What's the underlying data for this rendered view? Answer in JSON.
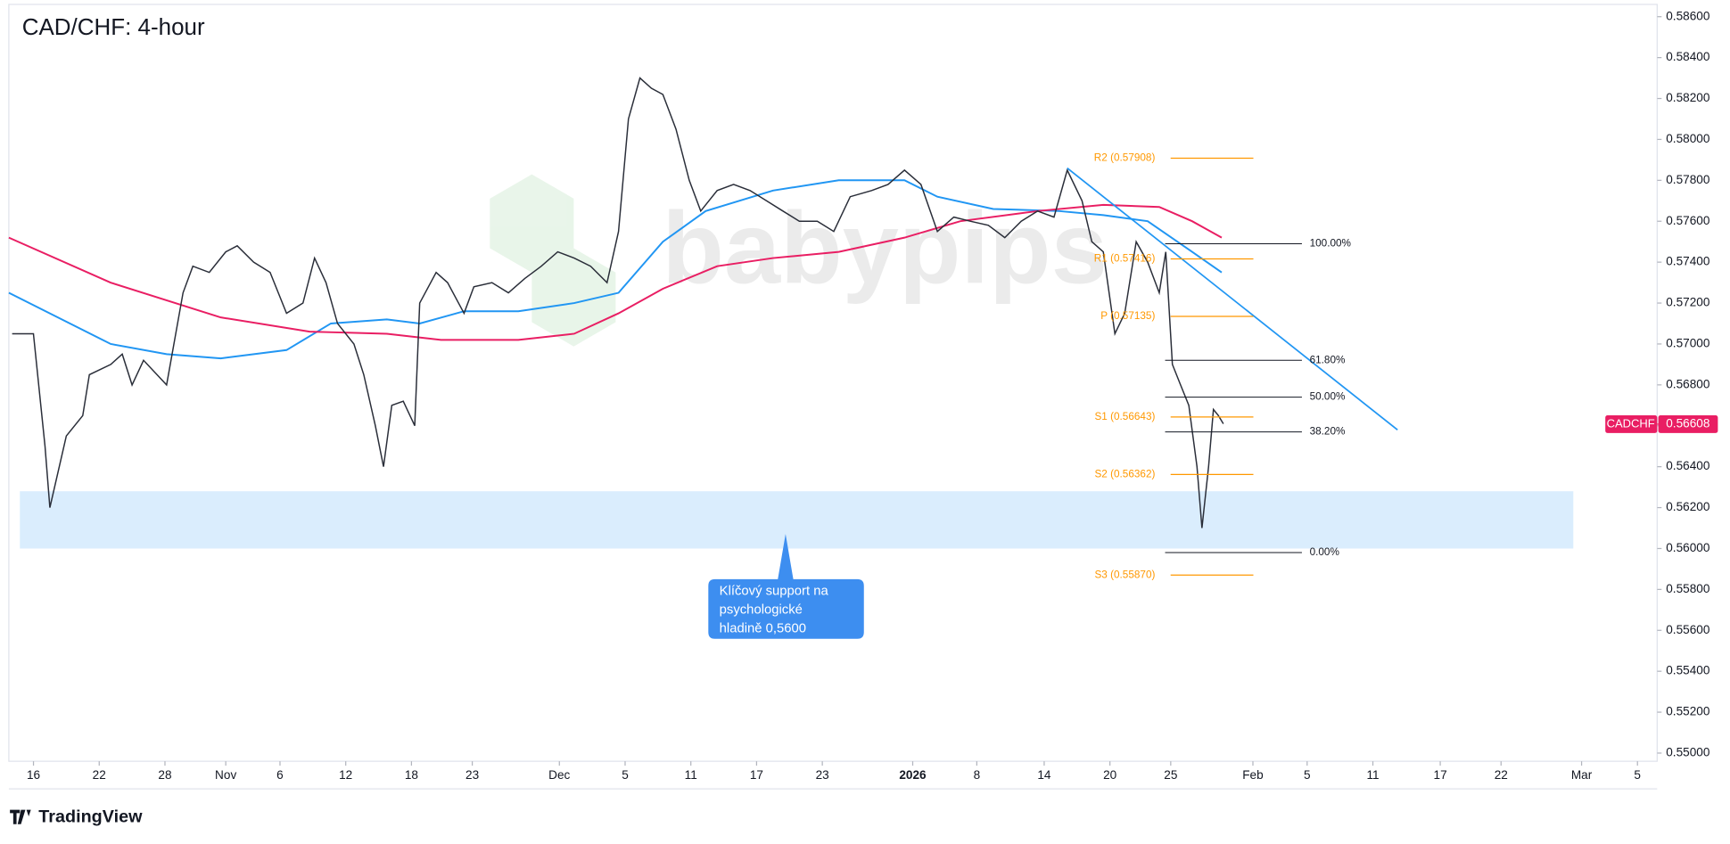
{
  "chart_data": {
    "type": "line",
    "title": "CAD/CHF: 4-hour",
    "watermark": "babypips",
    "brand": "TradingView",
    "symbol": "CADCHF",
    "last_price": 0.56608,
    "x": [
      -1.3,
      0,
      0.7,
      1.0,
      2.0,
      3.0,
      3.4,
      4.7,
      5.4,
      6.0,
      6.7,
      8.1,
      9.1,
      9.7,
      10.7,
      11.7,
      12.4,
      13.4,
      14.4,
      15.4,
      16.4,
      17.1,
      17.8,
      18.5,
      19.5,
      20.1,
      20.8,
      21.3,
      21.8,
      22.5,
      23.2,
      23.5,
      24.5,
      25.2,
      26.2,
      26.8,
      27.9,
      28.9,
      29.9,
      30.9,
      31.9,
      32.9,
      33.9,
      34.9,
      35.6,
      36.2,
      36.9,
      37.6,
      38.3,
      39.1,
      39.9,
      40.6,
      41.6,
      42.6,
      43.6,
      44.6,
      45.6,
      46.6,
      47.7,
      48.7,
      49.7,
      51.0,
      52.0,
      53.0,
      54.0,
      55.0,
      56.0,
      57.0,
      58.1,
      59.1,
      60.1,
      61.1,
      62.1,
      62.9,
      63.8,
      64.4,
      65.1,
      65.8,
      66.4,
      67.1,
      67.8,
      68.5,
      68.9,
      69.3,
      69.8,
      70.3,
      70.8,
      71.1,
      71.5,
      71.8,
      72.1,
      72.4
    ],
    "series": [
      {
        "name": "CADCHF",
        "color": "#2a2e39",
        "values": [
          0.5705,
          0.5705,
          0.565,
          0.562,
          0.5655,
          0.5665,
          0.5685,
          0.569,
          0.5695,
          0.568,
          0.5692,
          0.568,
          0.5725,
          0.5738,
          0.5735,
          0.5745,
          0.5748,
          0.574,
          0.5735,
          0.5715,
          0.572,
          0.5742,
          0.573,
          0.571,
          0.57,
          0.5685,
          0.566,
          0.564,
          0.567,
          0.5672,
          0.566,
          0.572,
          0.5735,
          0.573,
          0.5715,
          0.5728,
          0.573,
          0.5725,
          0.5732,
          0.5738,
          0.5745,
          0.5742,
          0.5738,
          0.573,
          0.5755,
          0.581,
          0.583,
          0.5825,
          0.5822,
          0.5805,
          0.578,
          0.5765,
          0.5775,
          0.5778,
          0.5775,
          0.577,
          0.5765,
          0.576,
          0.576,
          0.5755,
          0.5772,
          0.5775,
          0.5778,
          0.5785,
          0.5778,
          0.5755,
          0.5762,
          0.576,
          0.5758,
          0.5752,
          0.576,
          0.5765,
          0.5762,
          0.5785,
          0.577,
          0.575,
          0.5745,
          0.5705,
          0.5715,
          0.575,
          0.574,
          0.5725,
          0.5745,
          0.569,
          0.568,
          0.567,
          0.564,
          0.561,
          0.564,
          0.5668,
          0.5665,
          0.5661
        ]
      }
    ],
    "moving_averages": [
      {
        "color": "#2196f3",
        "x": [
          -1.5,
          4.7,
          8.1,
          11.4,
          15.4,
          18.1,
          21.5,
          23.5,
          26.2,
          29.5,
          32.9,
          35.6,
          38.3,
          40.9,
          45.0,
          49.0,
          53.0,
          55.0,
          58.4,
          62.4,
          65.1,
          67.8,
          70.5,
          72.3
        ],
        "values": [
          0.5725,
          0.57,
          0.5695,
          0.5693,
          0.5697,
          0.571,
          0.5712,
          0.571,
          0.5716,
          0.5716,
          0.572,
          0.5725,
          0.575,
          0.5765,
          0.5775,
          0.578,
          0.578,
          0.5772,
          0.5766,
          0.5765,
          0.5763,
          0.576,
          0.5745,
          0.5735
        ]
      },
      {
        "color": "#e91e63",
        "x": [
          -1.5,
          4.7,
          11.4,
          16.8,
          21.5,
          24.8,
          29.5,
          32.9,
          35.6,
          38.3,
          41.6,
          45.0,
          49.0,
          53.0,
          56.4,
          61.1,
          65.1,
          68.5,
          70.5,
          72.3
        ],
        "values": [
          0.5752,
          0.573,
          0.5713,
          0.5706,
          0.5705,
          0.5702,
          0.5702,
          0.5705,
          0.5715,
          0.5727,
          0.5738,
          0.5742,
          0.5745,
          0.5752,
          0.576,
          0.5765,
          0.5768,
          0.5767,
          0.576,
          0.5752
        ]
      }
    ],
    "support_zone": [
      0.56,
      0.5628
    ],
    "trendline": {
      "x": [
        62.9,
        83.0
      ],
      "values": [
        0.5786,
        0.5658
      ]
    },
    "fib_levels": [
      {
        "price": 0.5749,
        "label": "100.00%"
      },
      {
        "price": 0.5692,
        "label": "61.80%"
      },
      {
        "price": 0.5674,
        "label": "50.00%"
      },
      {
        "price": 0.5657,
        "label": "38.20%"
      },
      {
        "price": 0.5598,
        "label": "0.00%"
      }
    ],
    "pivots": [
      {
        "price": 0.57908,
        "label": "R2 (0.57908)"
      },
      {
        "price": 0.57416,
        "label": "R1 (0.57416)"
      },
      {
        "price": 0.57135,
        "label": "P (0.57135)"
      },
      {
        "price": 0.56643,
        "label": "S1 (0.56643)"
      },
      {
        "price": 0.56362,
        "label": "S2 (0.56362)"
      },
      {
        "price": 0.5587,
        "label": "S3 (0.55870)"
      }
    ],
    "annotation": [
      "Klíčový support na",
      "psychologické",
      "hladině 0,5600"
    ],
    "xlim": [
      -1.5,
      98.8
    ],
    "ylim": [
      0.5496,
      0.5866
    ],
    "xticks": [
      {
        "value": 0,
        "label": "16"
      },
      {
        "value": 4,
        "label": "22"
      },
      {
        "value": 8,
        "label": "28"
      },
      {
        "value": 11.7,
        "label": "Nov"
      },
      {
        "value": 15,
        "label": "6"
      },
      {
        "value": 19,
        "label": "12"
      },
      {
        "value": 23,
        "label": "18"
      },
      {
        "value": 26.7,
        "label": "23"
      },
      {
        "value": 32,
        "label": "Dec"
      },
      {
        "value": 36,
        "label": "5"
      },
      {
        "value": 40,
        "label": "11"
      },
      {
        "value": 44,
        "label": "17"
      },
      {
        "value": 48,
        "label": "23"
      },
      {
        "value": 53.5,
        "label": "2026"
      },
      {
        "value": 57.4,
        "label": "8"
      },
      {
        "value": 61.5,
        "label": "14"
      },
      {
        "value": 65.5,
        "label": "20"
      },
      {
        "value": 69.2,
        "label": "25"
      },
      {
        "value": 74.2,
        "label": "Feb"
      },
      {
        "value": 77.5,
        "label": "5"
      },
      {
        "value": 81.5,
        "label": "11"
      },
      {
        "value": 85.6,
        "label": "17"
      },
      {
        "value": 89.3,
        "label": "22"
      },
      {
        "value": 94.2,
        "label": "Mar"
      },
      {
        "value": 97.6,
        "label": "5"
      }
    ],
    "yticks": [
      {
        "value": 0.586,
        "label": "0.58600"
      },
      {
        "value": 0.584,
        "label": "0.58400"
      },
      {
        "value": 0.582,
        "label": "0.58200"
      },
      {
        "value": 0.58,
        "label": "0.58000"
      },
      {
        "value": 0.578,
        "label": "0.57800"
      },
      {
        "value": 0.576,
        "label": "0.57600"
      },
      {
        "value": 0.574,
        "label": "0.57400"
      },
      {
        "value": 0.572,
        "label": "0.57200"
      },
      {
        "value": 0.57,
        "label": "0.57000"
      },
      {
        "value": 0.568,
        "label": "0.56800"
      },
      {
        "value": 0.566,
        "label": "0.56600"
      },
      {
        "value": 0.564,
        "label": "0.56400"
      },
      {
        "value": 0.562,
        "label": "0.56200"
      },
      {
        "value": 0.56,
        "label": "0.56000"
      },
      {
        "value": 0.558,
        "label": "0.55800"
      },
      {
        "value": 0.556,
        "label": "0.55600"
      },
      {
        "value": 0.554,
        "label": "0.55400"
      },
      {
        "value": 0.552,
        "label": "0.55200"
      },
      {
        "value": 0.55,
        "label": "0.55000"
      }
    ],
    "grid": false
  }
}
